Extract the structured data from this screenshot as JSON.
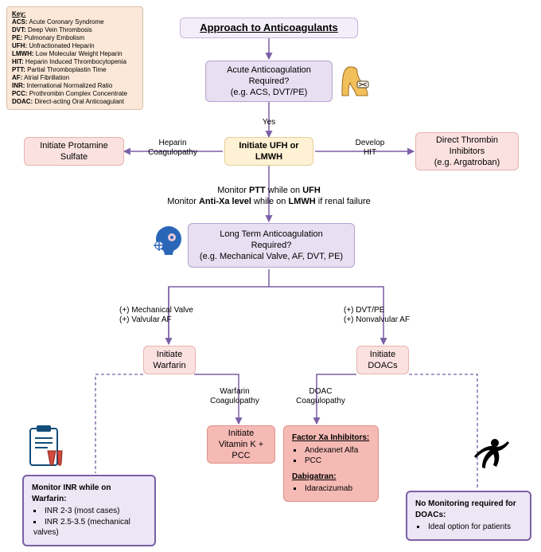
{
  "title": "Approach to Anticoagulants",
  "type": "flowchart",
  "colors": {
    "purple_bg": "#e8dff2",
    "purple_border": "#b6a3d0",
    "pink_bg": "#fbe2e0",
    "pink_border": "#e6b3af",
    "red_bg": "#f6bab5",
    "red_border": "#de9089",
    "yellow_bg": "#fff1d3",
    "yellow_border": "#e3cf99",
    "key_bg": "#fbe8d8",
    "edge": "#7a5fa6",
    "page_bg": "#ffffff"
  },
  "key": {
    "title": "Key:",
    "items": [
      {
        "abbr": "ACS",
        "def": "Acute Coronary Syndrome"
      },
      {
        "abbr": "DVT",
        "def": "Deep Vein Thrombosis"
      },
      {
        "abbr": "PE",
        "def": "Pulmonary Embolism"
      },
      {
        "abbr": "UFH",
        "def": "Unfractionated Heparin"
      },
      {
        "abbr": "LMWH",
        "def": "Low Molecular Weight Heparin"
      },
      {
        "abbr": "HIT",
        "def": "Heparin Induced Thrombocytopenia"
      },
      {
        "abbr": "PTT",
        "def": "Partial Thromboplastin Time"
      },
      {
        "abbr": "AF",
        "def": "Atrial Fibrillation"
      },
      {
        "abbr": "INR",
        "def": "International Normalized Ratio"
      },
      {
        "abbr": "PCC",
        "def": "Prothrombin Complex Concentrate"
      },
      {
        "abbr": "DOAC",
        "def": "Direct-acting Oral Anticoagulant"
      }
    ]
  },
  "nodes": {
    "acute_q": {
      "l1": "Acute Anticoagulation",
      "l2": "Required?",
      "l3": "(e.g. ACS, DVT/PE)"
    },
    "protamine": {
      "l1": "Initiate Protamine",
      "l2": "Sulfate"
    },
    "ufh": {
      "l1": "Initiate UFH or",
      "l2": "LMWH"
    },
    "dti": {
      "l1": "Direct Thrombin",
      "l2": "Inhibitors",
      "l3": "(e.g. Argatroban)"
    },
    "ltq": {
      "l1": "Long Term Anticoagulation",
      "l2": "Required?",
      "l3": "(e.g. Mechanical Valve, AF, DVT, PE)"
    },
    "warfarin": "Initiate\nWarfarin",
    "doacs": "Initiate\nDOACs",
    "vitk": {
      "l1": "Initiate",
      "l2": "Vitamin K +",
      "l3": "PCC"
    }
  },
  "edgeLabels": {
    "yes": "Yes",
    "hep_coag": "Heparin\nCoagulopathy",
    "hit": "Develop\nHIT",
    "mech": "(+) Mechanical Valve\n(+) Valvular AF",
    "dvtpe": "(+) DVT/PE\n(+) Nonvalvular AF",
    "warf_coag": "Warfarin\nCoagulopathy",
    "doac_coag": "DOAC\nCoagulopathy"
  },
  "notes": {
    "monitor1": "Monitor <b>PTT</b> while on <b>UFH</b>",
    "monitor2": "Monitor <b>Anti-Xa level</b> while on <b>LMWH</b> if renal failure"
  },
  "inr_box": {
    "hdr": "Monitor INR while on Warfarin:",
    "b1": "INR 2-3 (most cases)",
    "b2": "INR 2.5-3.5 (mechanical valves)"
  },
  "reversal_box": {
    "hdr1": "Factor Xa Inhibitors:",
    "b1": "Andexanet Alfa",
    "b2": "PCC",
    "hdr2": "Dabigatran:",
    "b3": "Idaracizumab"
  },
  "doac_box": {
    "hdr": "No Monitoring required for DOACs:",
    "b1": "Ideal option for patients"
  }
}
